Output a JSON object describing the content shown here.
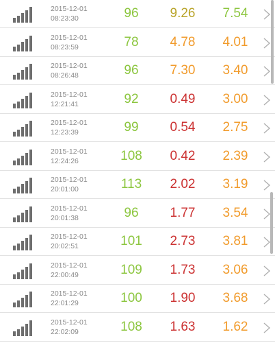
{
  "colors": {
    "green": "#8cc63f",
    "orange": "#f19b2c",
    "red": "#cc3333",
    "olive": "#b9a42a",
    "signal": "#6e6e6e"
  },
  "rows": [
    {
      "date": "2015-12-01",
      "time": "08:23:30",
      "v1": "96",
      "v2": "9.26",
      "v3": "7.54",
      "c1": "green",
      "c2": "olive",
      "c3": "green"
    },
    {
      "date": "2015-12-01",
      "time": "08:23:59",
      "v1": "78",
      "v2": "4.78",
      "v3": "4.01",
      "c1": "green",
      "c2": "orange",
      "c3": "orange"
    },
    {
      "date": "2015-12-01",
      "time": "08:26:48",
      "v1": "96",
      "v2": "7.30",
      "v3": "3.40",
      "c1": "green",
      "c2": "orange",
      "c3": "orange"
    },
    {
      "date": "2015-12-01",
      "time": "12:21:41",
      "v1": "92",
      "v2": "0.49",
      "v3": "3.00",
      "c1": "green",
      "c2": "red",
      "c3": "orange"
    },
    {
      "date": "2015-12-01",
      "time": "12:23:39",
      "v1": "99",
      "v2": "0.54",
      "v3": "2.75",
      "c1": "green",
      "c2": "red",
      "c3": "orange"
    },
    {
      "date": "2015-12-01",
      "time": "12:24:26",
      "v1": "108",
      "v2": "0.42",
      "v3": "2.39",
      "c1": "green",
      "c2": "red",
      "c3": "orange"
    },
    {
      "date": "2015-12-01",
      "time": "20:01:00",
      "v1": "113",
      "v2": "2.02",
      "v3": "3.19",
      "c1": "green",
      "c2": "red",
      "c3": "orange"
    },
    {
      "date": "2015-12-01",
      "time": "20:01:38",
      "v1": "96",
      "v2": "1.77",
      "v3": "3.54",
      "c1": "green",
      "c2": "red",
      "c3": "orange"
    },
    {
      "date": "2015-12-01",
      "time": "20:02:51",
      "v1": "101",
      "v2": "2.73",
      "v3": "3.81",
      "c1": "green",
      "c2": "red",
      "c3": "orange"
    },
    {
      "date": "2015-12-01",
      "time": "22:00:49",
      "v1": "109",
      "v2": "1.73",
      "v3": "3.06",
      "c1": "green",
      "c2": "red",
      "c3": "orange"
    },
    {
      "date": "2015-12-01",
      "time": "22:01:29",
      "v1": "100",
      "v2": "1.90",
      "v3": "3.68",
      "c1": "green",
      "c2": "red",
      "c3": "orange"
    },
    {
      "date": "2015-12-01",
      "time": "22:02:09",
      "v1": "108",
      "v2": "1.63",
      "v3": "1.62",
      "c1": "green",
      "c2": "red",
      "c3": "orange"
    }
  ]
}
